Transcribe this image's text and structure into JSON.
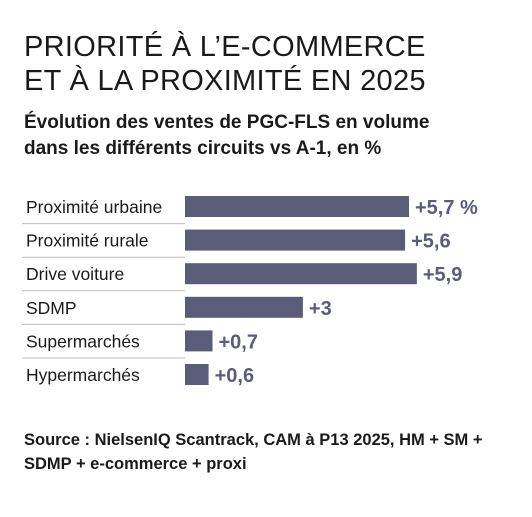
{
  "header": {
    "title_line1": "PRIORITÉ À L’E-COMMERCE",
    "title_line2": "ET À LA PROXIMITÉ EN 2025",
    "subtitle_line1": "Évolution des ventes de PGC-FLS en volume",
    "subtitle_line2": "dans les différents circuits vs A-1, en %"
  },
  "source": {
    "line1": "Source : NielsenIQ Scantrack, CAM à P13 2025, HM + SM +",
    "line2": "SDMP + e-commerce + proxi"
  },
  "colors": {
    "bar": "#5b5c78",
    "separator": "#bdbdbd",
    "text": "#1a1a1a"
  },
  "chart_data": {
    "type": "bar",
    "orientation": "horizontal",
    "categories": [
      "Proximité urbaine",
      "Proximité rurale",
      "Drive voiture",
      "SDMP",
      "Supermarchés",
      "Hypermarchés"
    ],
    "values": [
      5.7,
      5.6,
      5.9,
      3,
      0.7,
      0.6
    ],
    "value_labels": [
      "+5,7 %",
      "+5,6",
      "+5,9",
      "+3",
      "+0,7",
      "+0,6"
    ],
    "grid": false,
    "legend": "none"
  }
}
